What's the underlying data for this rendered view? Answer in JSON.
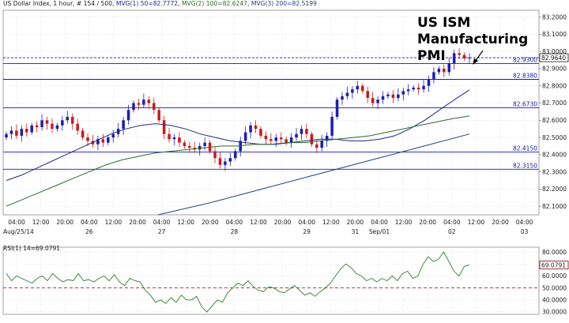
{
  "header": {
    "symbol": "US Dollar Index",
    "timeframe": ", 1 hour, # 154 / 500, ",
    "ma1_text": "MVG(1) 50=82.7772",
    "ma2_text": "MVG(2) 100=82.6247",
    "ma3_text": "MVG(3) 200=82.5199"
  },
  "annotation": {
    "lines": [
      "US ISM",
      "Manufacturing",
      "PMI"
    ]
  },
  "rsi_header": "RSI(1) 14=69.0791",
  "colors": {
    "background": "#ffffff",
    "grid": "#d2d6e3",
    "candle_up": "#1e1eb4",
    "candle_down": "#cc1a1a",
    "level_line": "#1a1aa8",
    "ma1": "#1e2a80",
    "ma2": "#2e6a2a",
    "ma3": "#1f3f80",
    "rsi_line": "#2e7d2e",
    "rsi_ref": "#b22222",
    "price_marker": "#1a1a1a",
    "rsi_marker": "#8b0000"
  },
  "chart_data": [
    {
      "type": "candlestick",
      "title": "US Dollar Index",
      "interval": "1 hour",
      "ylim": [
        82.05,
        83.24
      ],
      "y_ticks": [
        "83.2000",
        "83.1000",
        "83.0000",
        "82.9000",
        "82.8000",
        "82.7000",
        "82.6000",
        "82.5000",
        "82.4000",
        "82.3000",
        "82.2000",
        "82.1000"
      ],
      "x_tick_labels": [
        "04:00",
        "12:00",
        "20:00",
        "04:00",
        "12:00",
        "20:00",
        "04:00",
        "12:00",
        "20:00",
        "04:00",
        "12:00",
        "20:00",
        "04:00",
        "12:00",
        "20:00",
        "04:00",
        "12:00",
        "20:00",
        "04:00",
        "12:00",
        "20:00",
        "04:00"
      ],
      "date_labels": [
        {
          "label": "Aug/25/14",
          "at_tick": 0
        },
        {
          "label": "26",
          "at_tick": 3
        },
        {
          "label": "27",
          "at_tick": 6
        },
        {
          "label": "28",
          "at_tick": 9
        },
        {
          "label": "29",
          "at_tick": 12
        },
        {
          "label": "31",
          "at_tick": 14
        },
        {
          "label": "Sep/01",
          "at_tick": 15
        },
        {
          "label": "02",
          "at_tick": 18
        },
        {
          "label": "03",
          "at_tick": 21
        }
      ],
      "horizontal_levels": [
        {
          "value": 82.93,
          "label": "82.9300",
          "style": "solid"
        },
        {
          "value": 82.838,
          "label": "82.8380",
          "style": "solid"
        },
        {
          "value": 82.673,
          "label": "82.6730",
          "style": "solid"
        },
        {
          "value": 82.415,
          "label": "82.4150",
          "style": "solid"
        },
        {
          "value": 82.315,
          "label": "82.3150",
          "style": "solid"
        },
        {
          "value": 82.964,
          "label": "82.9640",
          "style": "dashed",
          "current_price": true
        }
      ],
      "close_series": [
        82.52,
        82.54,
        82.51,
        82.55,
        82.53,
        82.57,
        82.56,
        82.6,
        82.58,
        82.55,
        82.57,
        82.6,
        82.62,
        82.58,
        82.54,
        82.5,
        82.48,
        82.46,
        82.49,
        82.47,
        82.5,
        82.52,
        82.55,
        82.6,
        82.66,
        82.7,
        82.69,
        82.72,
        82.7,
        82.66,
        82.6,
        82.52,
        82.49,
        82.5,
        82.47,
        82.45,
        82.44,
        82.43,
        82.45,
        82.47,
        82.42,
        82.38,
        82.34,
        82.36,
        82.38,
        82.42,
        82.48,
        82.53,
        82.57,
        82.55,
        82.51,
        82.49,
        82.48,
        82.5,
        82.49,
        82.47,
        82.5,
        82.52,
        82.55,
        82.52,
        82.46,
        82.44,
        82.48,
        82.51,
        82.62,
        82.72,
        82.74,
        82.76,
        82.78,
        82.8,
        82.77,
        82.73,
        82.7,
        82.72,
        82.74,
        82.75,
        82.73,
        82.75,
        82.77,
        82.78,
        82.79,
        82.78,
        82.8,
        82.84,
        82.88,
        82.9,
        82.88,
        82.93,
        82.99,
        82.98,
        82.96,
        82.964
      ],
      "series": [
        {
          "name": "MVG(1) 50",
          "values": [
            82.25,
            82.28,
            82.32,
            82.36,
            82.4,
            82.44,
            82.48,
            82.52,
            82.55,
            82.57,
            82.58,
            82.57,
            82.55,
            82.52,
            82.5,
            82.48,
            82.47,
            82.46,
            82.46,
            82.47,
            82.48,
            82.49,
            82.49,
            82.48,
            82.48,
            82.49,
            82.51,
            82.55,
            82.6,
            82.66,
            82.72,
            82.777
          ]
        },
        {
          "name": "MVG(2) 100",
          "values": [
            82.1,
            82.14,
            82.18,
            82.22,
            82.26,
            82.3,
            82.34,
            82.37,
            82.39,
            82.41,
            82.42,
            82.43,
            82.44,
            82.45,
            82.45,
            82.46,
            82.46,
            82.47,
            82.47,
            82.48,
            82.49,
            82.5,
            82.51,
            82.53,
            82.55,
            82.57,
            82.59,
            82.61,
            82.625
          ]
        },
        {
          "name": "MVG(3) 200",
          "values": [
            82.05,
            82.12,
            82.2,
            82.28,
            82.36,
            82.44,
            82.52
          ]
        }
      ]
    },
    {
      "type": "line",
      "title": "RSI(1) 14",
      "ylim": [
        28,
        84
      ],
      "y_ticks": [
        "80.0000",
        "70.0000",
        "60.0000",
        "50.0000",
        "40.0000",
        "30.0000"
      ],
      "reference_line": {
        "value": 50,
        "style": "dashed"
      },
      "current_value": "69.0791",
      "values": [
        62,
        56,
        60,
        58,
        56,
        54,
        58,
        60,
        56,
        62,
        58,
        55,
        57,
        56,
        62,
        56,
        57,
        55,
        58,
        60,
        56,
        61,
        55,
        52,
        58,
        56,
        55,
        48,
        44,
        38,
        40,
        37,
        42,
        38,
        44,
        40,
        40,
        43,
        34,
        30,
        35,
        40,
        38,
        46,
        50,
        54,
        52,
        56,
        51,
        48,
        47,
        51,
        50,
        47,
        46,
        49,
        52,
        48,
        44,
        46,
        43,
        47,
        50,
        54,
        60,
        66,
        70,
        67,
        62,
        60,
        56,
        58,
        55,
        58,
        56,
        60,
        56,
        62,
        64,
        58,
        60,
        70,
        76,
        72,
        74,
        80,
        72,
        64,
        60,
        68,
        69.08
      ]
    }
  ]
}
